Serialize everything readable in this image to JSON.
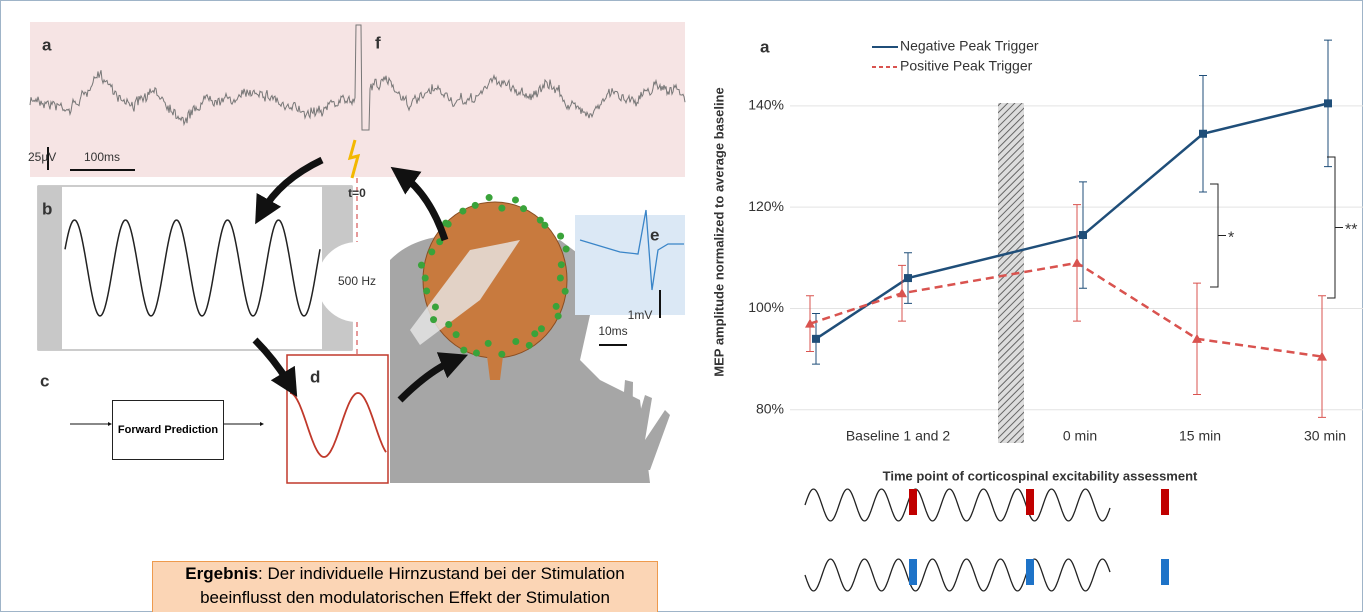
{
  "chart_data": {
    "type": "line",
    "panel_label": "a",
    "ylabel": "MEP amplitude normalized to average baseline",
    "xlabel": "Time point of corticospinal excitability assessment",
    "categories": [
      null,
      null,
      "0 min",
      "15 min",
      "30 min"
    ],
    "annotations": [
      "Baseline 1 and 2",
      "*",
      "**"
    ],
    "ylim": [
      76,
      154
    ],
    "yticks": [
      {
        "value": 80,
        "label": "80%"
      },
      {
        "value": 100,
        "label": "100%"
      },
      {
        "value": 120,
        "label": "120%"
      },
      {
        "value": 140,
        "label": "140%"
      }
    ],
    "grid": true,
    "legend": "top-left",
    "series": [
      {
        "name": "Negative Peak Trigger",
        "color": "#1f4e79",
        "marker": "square",
        "dash": false,
        "values": [
          94,
          106,
          114.5,
          134.5,
          140.5
        ],
        "errors": [
          5,
          5,
          10.5,
          11.5,
          12.5
        ]
      },
      {
        "name": "Positive Peak Trigger",
        "color": "#d9534f",
        "marker": "triangle",
        "dash": true,
        "values": [
          97,
          103,
          109,
          94,
          90.5
        ],
        "errors": [
          5.5,
          5.5,
          11.5,
          11,
          12
        ]
      }
    ]
  },
  "diagram": {
    "panels": [
      "a",
      "f",
      "b",
      "c",
      "d",
      "e"
    ],
    "scale_labels": [
      "25µV",
      "100ms",
      "t=0",
      "500 Hz",
      "10ms",
      "1mV"
    ],
    "box": "Forward Prediction"
  },
  "caption": {
    "bold": "Ergebnis",
    "text": ": Der individuelle Hirnzustand bei der Stimulation beeinflusst den modulatorischen Effekt der Stimulation"
  }
}
